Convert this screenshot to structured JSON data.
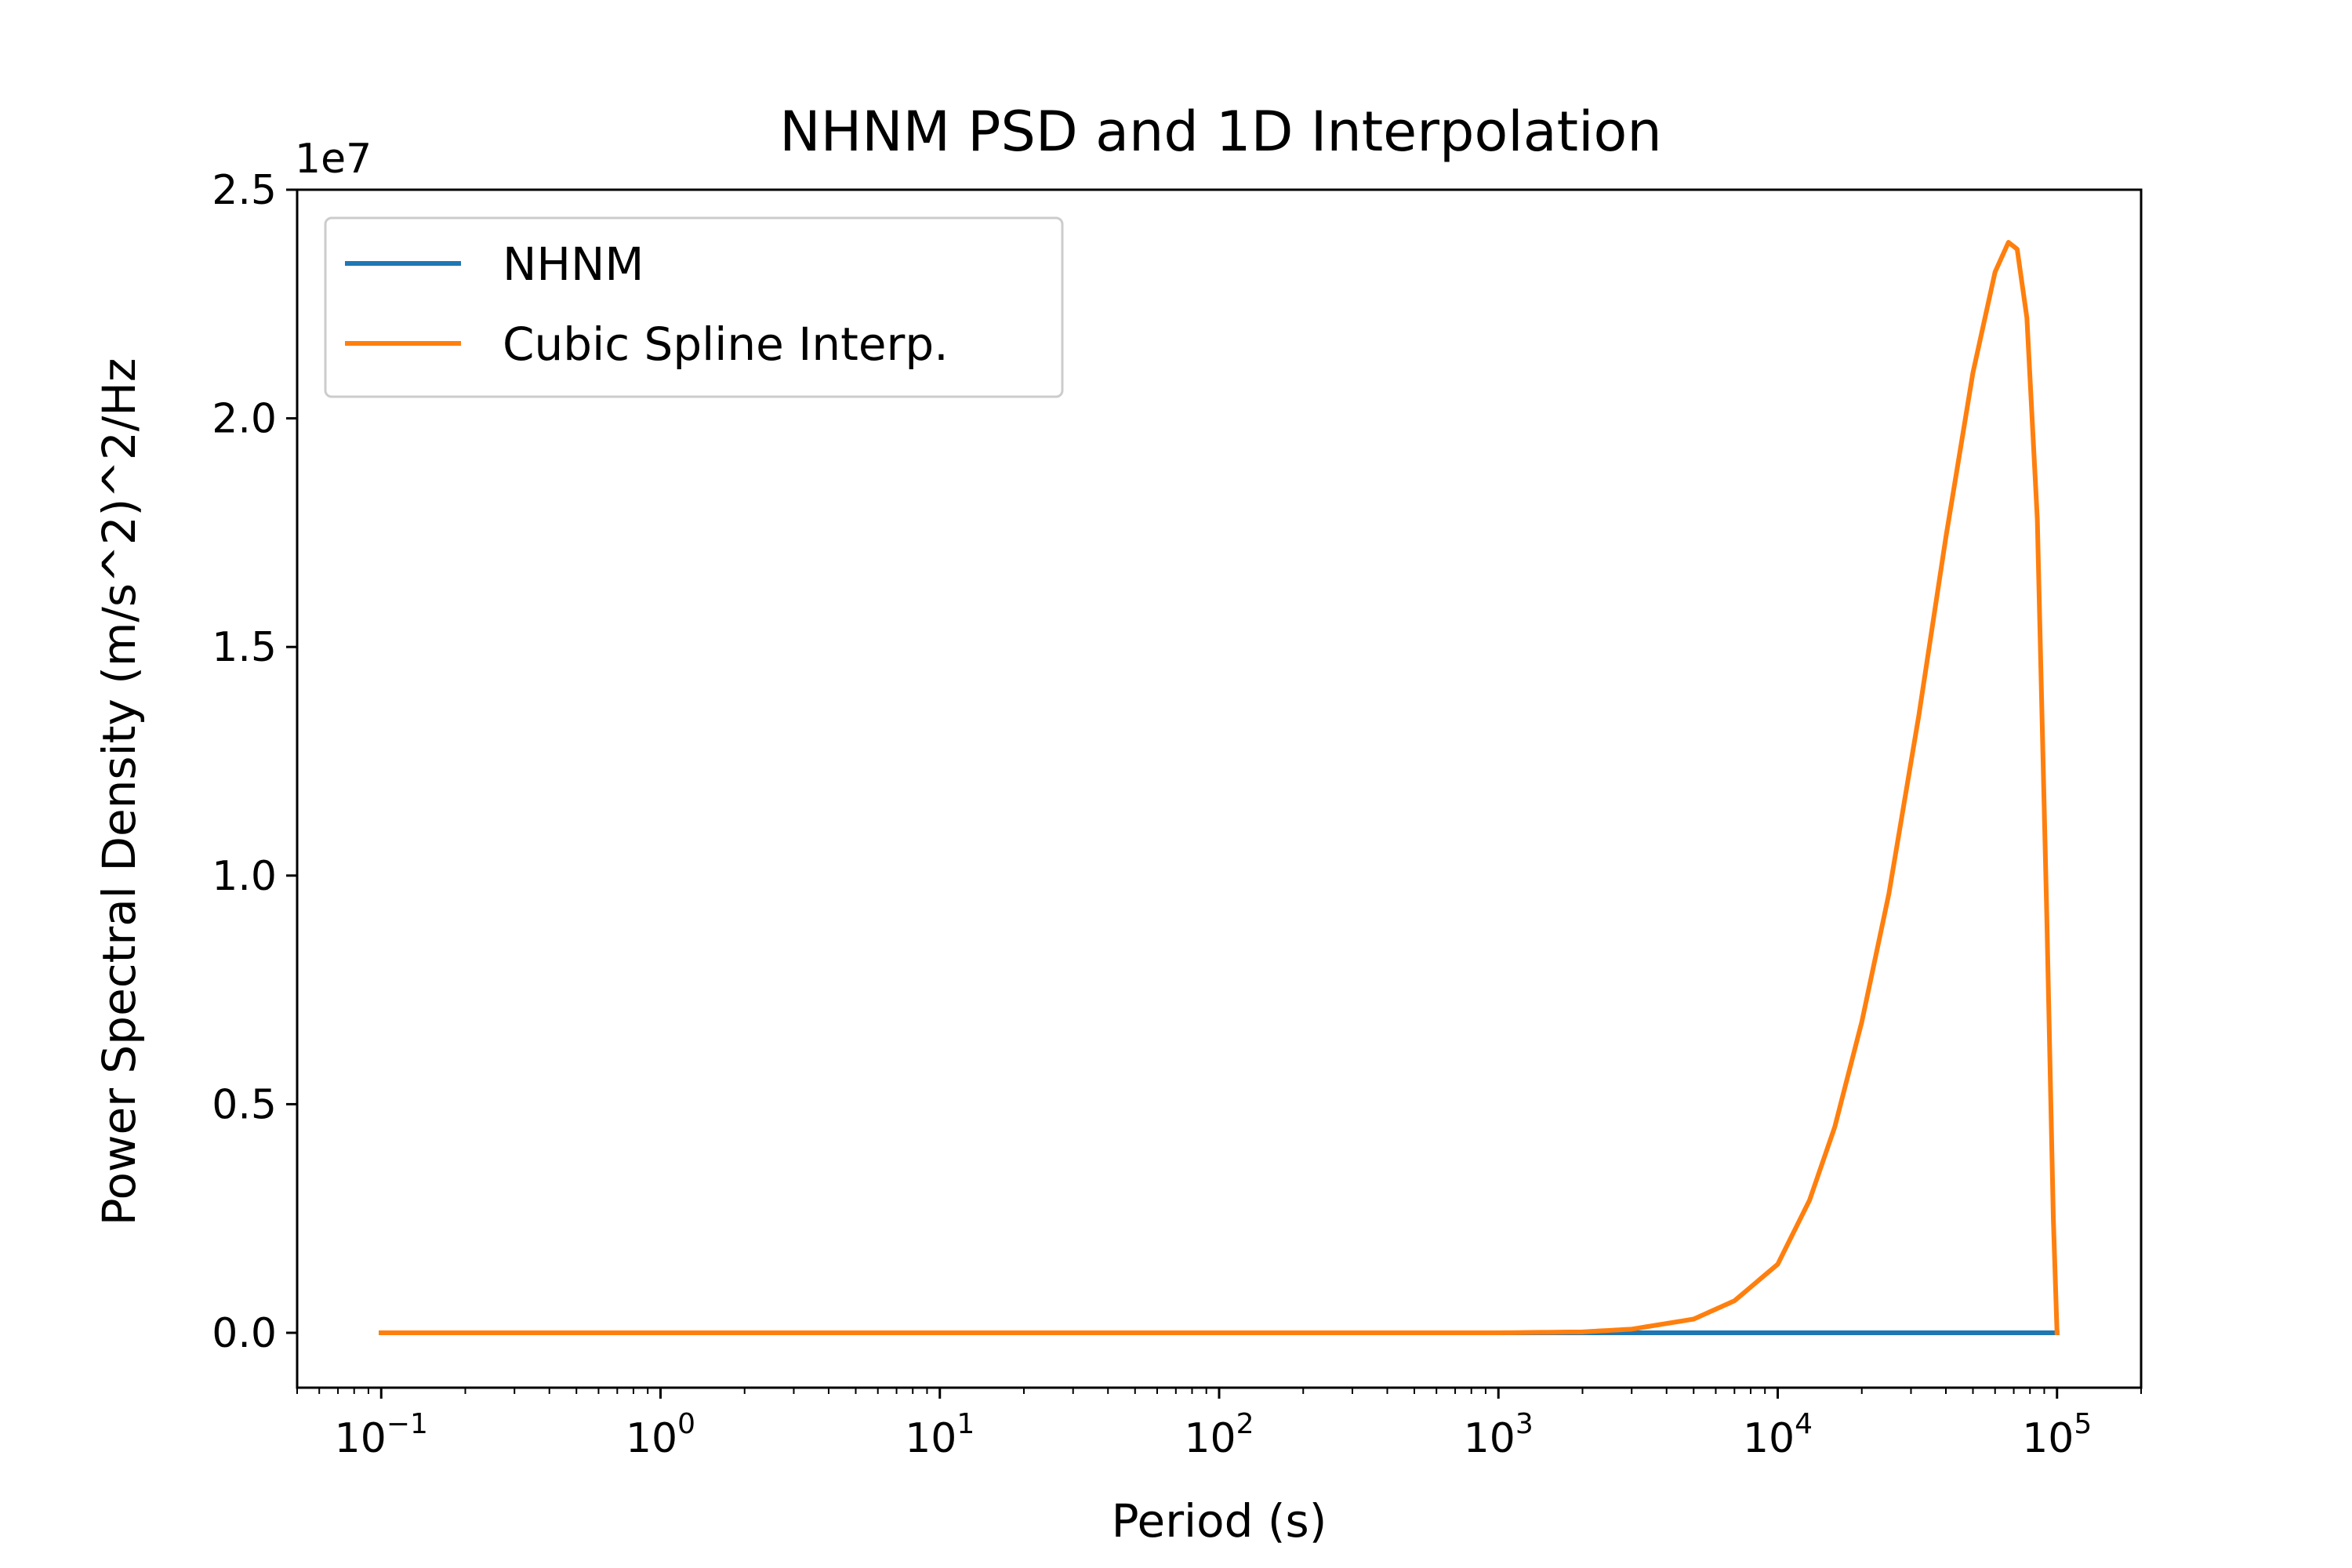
{
  "chart_data": {
    "type": "line",
    "title": "NHNM PSD and 1D Interpolation",
    "xlabel": "Period (s)",
    "ylabel": "Power Spectral Density (m/s^2)^2/Hz",
    "x_scale": "log",
    "y_offset_text": "1e7",
    "y_multiplier": 10000000,
    "xlim": [
      0.05,
      200000
    ],
    "ylim": [
      -1.2,
      25
    ],
    "x_ticks": [
      {
        "value": 0.1,
        "base": "10",
        "exp": "−1"
      },
      {
        "value": 1,
        "base": "10",
        "exp": "0"
      },
      {
        "value": 10,
        "base": "10",
        "exp": "1"
      },
      {
        "value": 100,
        "base": "10",
        "exp": "2"
      },
      {
        "value": 1000,
        "base": "10",
        "exp": "3"
      },
      {
        "value": 10000,
        "base": "10",
        "exp": "4"
      },
      {
        "value": 100000,
        "base": "10",
        "exp": "5"
      }
    ],
    "y_ticks": [
      {
        "value": 0,
        "label": "0.0"
      },
      {
        "value": 5,
        "label": "0.5"
      },
      {
        "value": 10,
        "label": "1.0"
      },
      {
        "value": 15,
        "label": "1.5"
      },
      {
        "value": 20,
        "label": "2.0"
      },
      {
        "value": 25,
        "label": "2.5"
      }
    ],
    "legend": {
      "position": "upper-left"
    },
    "series": [
      {
        "name": "NHNM",
        "color": "#1f77b4",
        "x": [
          0.1,
          1,
          10,
          100,
          1000,
          10000,
          100000
        ],
        "y": [
          0,
          0,
          0,
          0,
          0,
          0,
          0
        ]
      },
      {
        "name": "Cubic Spline Interp.",
        "color": "#ff7f0e",
        "x": [
          0.1,
          1,
          10,
          100,
          1000,
          2000,
          3000,
          5000,
          7000,
          10000,
          13000,
          16000,
          20000,
          25000,
          32000,
          40000,
          50000,
          60000,
          67000,
          72000,
          78000,
          85000,
          92000,
          97000,
          100000
        ],
        "y": [
          0,
          0,
          0,
          0,
          0,
          0.02,
          0.08,
          0.3,
          0.7,
          1.5,
          2.9,
          4.5,
          6.8,
          9.6,
          13.5,
          17.4,
          21.0,
          23.2,
          23.85,
          23.7,
          22.2,
          17.8,
          9.0,
          2.5,
          0
        ]
      }
    ]
  }
}
